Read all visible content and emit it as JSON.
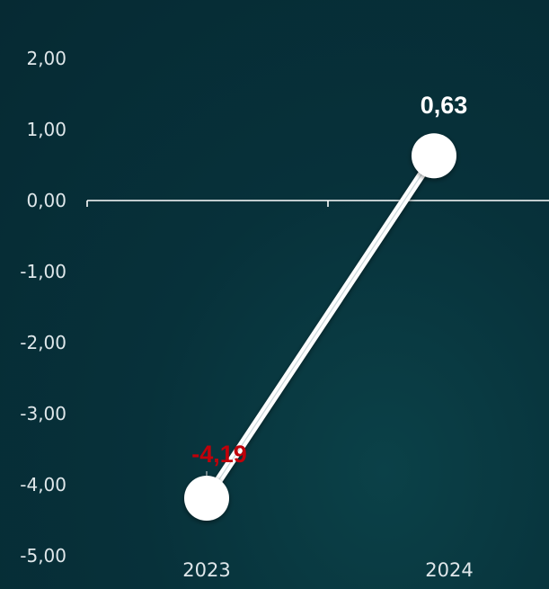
{
  "chart_data": {
    "type": "line",
    "title": "",
    "xlabel": "",
    "ylabel": "",
    "categories": [
      "2023",
      "2024"
    ],
    "series": [
      {
        "values": [
          -4.19,
          0.63
        ],
        "labels": [
          "-4,19",
          "0,63"
        ],
        "label_colors": [
          "#c0000a",
          "#ffffff"
        ]
      }
    ],
    "yticks": [
      {
        "value": 2,
        "label": "2,00"
      },
      {
        "value": 1,
        "label": "1,00"
      },
      {
        "value": 0,
        "label": "0,00"
      },
      {
        "value": -1,
        "label": "-1,00"
      },
      {
        "value": -2,
        "label": "-2,00"
      },
      {
        "value": -3,
        "label": "-3,00"
      },
      {
        "value": -4,
        "label": "-4,00"
      },
      {
        "value": -5,
        "label": "-5,00"
      }
    ],
    "ylim": [
      -5,
      2
    ],
    "grid": false,
    "legend": "none",
    "colors": {
      "line": "#ffffff",
      "marker": "#ffffff",
      "axis": "#ffffff",
      "tick_text": "#dfe7ea"
    }
  }
}
